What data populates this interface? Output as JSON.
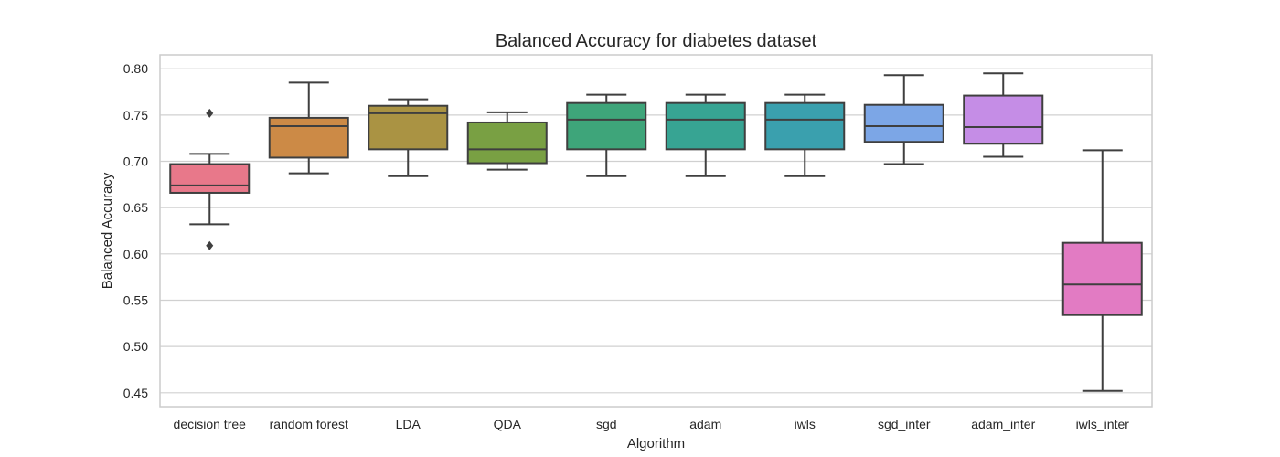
{
  "chart_data": {
    "type": "box",
    "title": "Balanced Accuracy for diabetes dataset",
    "xlabel": "Algorithm",
    "ylabel": "Balanced Accuracy",
    "ylim": [
      0.435,
      0.815
    ],
    "yticks": [
      0.45,
      0.5,
      0.55,
      0.6,
      0.65,
      0.7,
      0.75,
      0.8
    ],
    "ytick_labels": [
      "0.45",
      "0.50",
      "0.55",
      "0.60",
      "0.65",
      "0.70",
      "0.75",
      "0.80"
    ],
    "grid": "y",
    "categories": [
      "decision tree",
      "random forest",
      "LDA",
      "QDA",
      "sgd",
      "adam",
      "iwls",
      "sgd_inter",
      "adam_inter",
      "iwls_inter"
    ],
    "series": [
      {
        "category": "decision tree",
        "color": "#e8788a",
        "whisker_low": 0.632,
        "q1": 0.666,
        "median": 0.674,
        "q3": 0.697,
        "whisker_high": 0.708,
        "outliers": [
          0.752,
          0.609
        ]
      },
      {
        "category": "random forest",
        "color": "#cc8a46",
        "whisker_low": 0.687,
        "q1": 0.704,
        "median": 0.738,
        "q3": 0.747,
        "whisker_high": 0.785,
        "outliers": []
      },
      {
        "category": "LDA",
        "color": "#aa9343",
        "whisker_low": 0.684,
        "q1": 0.713,
        "median": 0.752,
        "q3": 0.76,
        "whisker_high": 0.767,
        "outliers": []
      },
      {
        "category": "QDA",
        "color": "#79a043",
        "whisker_low": 0.691,
        "q1": 0.698,
        "median": 0.713,
        "q3": 0.742,
        "whisker_high": 0.753,
        "outliers": []
      },
      {
        "category": "sgd",
        "color": "#3ea57a",
        "whisker_low": 0.684,
        "q1": 0.713,
        "median": 0.745,
        "q3": 0.763,
        "whisker_high": 0.772,
        "outliers": []
      },
      {
        "category": "adam",
        "color": "#37a493",
        "whisker_low": 0.684,
        "q1": 0.713,
        "median": 0.745,
        "q3": 0.763,
        "whisker_high": 0.772,
        "outliers": []
      },
      {
        "category": "iwls",
        "color": "#3aa0ae",
        "whisker_low": 0.684,
        "q1": 0.713,
        "median": 0.745,
        "q3": 0.763,
        "whisker_high": 0.772,
        "outliers": []
      },
      {
        "category": "sgd_inter",
        "color": "#7ca6e6",
        "whisker_low": 0.697,
        "q1": 0.721,
        "median": 0.738,
        "q3": 0.761,
        "whisker_high": 0.793,
        "outliers": []
      },
      {
        "category": "adam_inter",
        "color": "#c58de6",
        "whisker_low": 0.705,
        "q1": 0.719,
        "median": 0.737,
        "q3": 0.771,
        "whisker_high": 0.795,
        "outliers": []
      },
      {
        "category": "iwls_inter",
        "color": "#e27bc3",
        "whisker_low": 0.452,
        "q1": 0.534,
        "median": 0.567,
        "q3": 0.612,
        "whisker_high": 0.712,
        "outliers": []
      }
    ]
  }
}
